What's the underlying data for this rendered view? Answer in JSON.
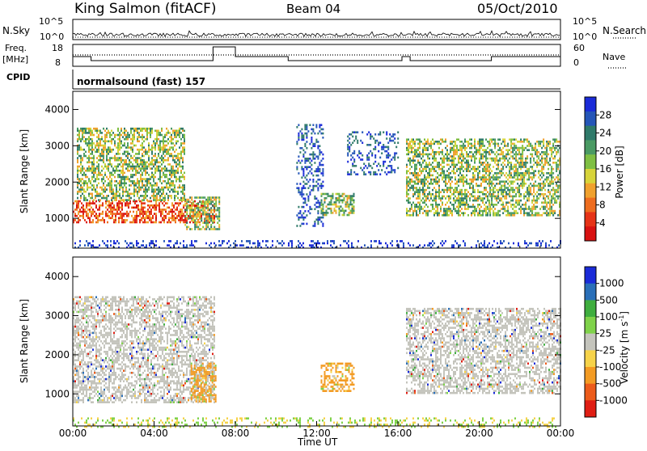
{
  "header": {
    "station": "King Salmon (fitACF)",
    "beam": "Beam 04",
    "date": "05/Oct/2010"
  },
  "aux_panel": {
    "nsky_label": "N.Sky",
    "nsearch_label": "N.Search",
    "nsky_ticks": [
      "10^5",
      "10^0"
    ],
    "nsearch_ticks": [
      "10^5",
      "10^0"
    ],
    "freq_label_top": "Freq.",
    "freq_label_bottom": "[MHz]",
    "freq_ticks": [
      "18",
      "8"
    ],
    "nave_label": "Nave",
    "nave_ticks": [
      "60",
      "0"
    ],
    "cpid_label": "CPID",
    "cpid_text": "normalsound (fast) 157"
  },
  "chart_data": [
    {
      "type": "heatmap",
      "title": "",
      "parameter": "Power",
      "xlabel": "",
      "ylabel": "Slant Range [km]",
      "x_range_hours": [
        0,
        24
      ],
      "ylim": [
        180,
        4500
      ],
      "y_ticks": [
        "4000",
        "3000",
        "2000",
        "1000"
      ],
      "colorbar": {
        "label": "Power [dB]",
        "ticks": [
          "28",
          "24",
          "20",
          "16",
          "12",
          "8",
          "4"
        ],
        "colors": [
          "#1a2bd8",
          "#2556b8",
          "#2f7a6a",
          "#4a9a63",
          "#7fbf43",
          "#d7d43a",
          "#f0a12e",
          "#ee6d1f",
          "#e63317",
          "#d81111"
        ]
      },
      "echo_regions": [
        {
          "t_start": 0.0,
          "t_end": 7.0,
          "r_min": 900,
          "r_max": 1500,
          "level": "high"
        },
        {
          "t_start": 0.2,
          "t_end": 5.5,
          "r_min": 1500,
          "r_max": 3500,
          "level": "mid"
        },
        {
          "t_start": 5.5,
          "t_end": 7.2,
          "r_min": 700,
          "r_max": 1600,
          "level": "mid"
        },
        {
          "t_start": 11.0,
          "t_end": 12.3,
          "r_min": 800,
          "r_max": 3600,
          "level": "low"
        },
        {
          "t_start": 12.2,
          "t_end": 13.8,
          "r_min": 1100,
          "r_max": 1700,
          "level": "mid"
        },
        {
          "t_start": 13.5,
          "t_end": 16.0,
          "r_min": 2200,
          "r_max": 3400,
          "level": "low"
        },
        {
          "t_start": 16.4,
          "t_end": 20.5,
          "r_min": 1100,
          "r_max": 3200,
          "level": "mid"
        },
        {
          "t_start": 20.5,
          "t_end": 24.0,
          "r_min": 1100,
          "r_max": 3200,
          "level": "mid"
        },
        {
          "t_start": 0.0,
          "t_end": 24.0,
          "r_min": 180,
          "r_max": 400,
          "level": "ground"
        }
      ]
    },
    {
      "type": "heatmap",
      "title": "",
      "parameter": "Velocity",
      "xlabel": "Time UT",
      "ylabel": "Slant Range [km]",
      "x_range_hours": [
        0,
        24
      ],
      "x_ticks": [
        "00:00",
        "04:00",
        "08:00",
        "12:00",
        "16:00",
        "20:00",
        "00:00"
      ],
      "ylim": [
        180,
        4500
      ],
      "y_ticks": [
        "4000",
        "3000",
        "2000",
        "1000"
      ],
      "colorbar": {
        "label": "Velocity [m s",
        "label_superscript": "-1",
        "label_suffix": "]",
        "ticks": [
          "1000",
          "500",
          "100",
          "25",
          "-25",
          "-100",
          "-500",
          "-1000"
        ],
        "colors": [
          "#1a2bd8",
          "#2a6fb8",
          "#3fae3f",
          "#7fd24a",
          "#c4c4bc",
          "#f6d34a",
          "#f39b23",
          "#ec5b1a",
          "#e01e14"
        ]
      },
      "echo_regions": [
        {
          "t_start": 0.0,
          "t_end": 7.0,
          "r_min": 800,
          "r_max": 3500,
          "level": "grey"
        },
        {
          "t_start": 5.8,
          "t_end": 7.0,
          "r_min": 800,
          "r_max": 1800,
          "level": "orange"
        },
        {
          "t_start": 12.2,
          "t_end": 13.8,
          "r_min": 1100,
          "r_max": 1800,
          "level": "orange"
        },
        {
          "t_start": 16.4,
          "t_end": 24.0,
          "r_min": 1000,
          "r_max": 3200,
          "level": "grey"
        },
        {
          "t_start": 0.0,
          "t_end": 24.0,
          "r_min": 180,
          "r_max": 400,
          "level": "ground"
        }
      ]
    }
  ]
}
